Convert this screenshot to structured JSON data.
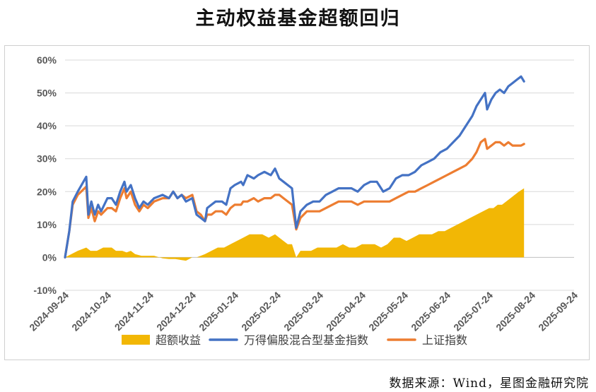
{
  "title": "主动权益基金超额回归",
  "source": "数据来源：Wind，星图金融研究院",
  "chart_data": {
    "type": "area+line",
    "title": "主动权益基金超额回归",
    "y_ticks": [
      "60%",
      "50%",
      "40%",
      "30%",
      "20%",
      "10%",
      "0%",
      "-10%"
    ],
    "ylim": [
      -10,
      60
    ],
    "x_ticks": [
      "2024-09-24",
      "2024-10-24",
      "2024-11-24",
      "2024-12-24",
      "2025-01-24",
      "2025-02-24",
      "2025-03-24",
      "2025-04-24",
      "2025-05-24",
      "2025-06-24",
      "2025-07-24",
      "2025-08-24",
      "2025-09-24"
    ],
    "legend": [
      {
        "name": "超额收益",
        "kind": "area",
        "color": "#F2B705"
      },
      {
        "name": "万得偏股混合型基金指数",
        "kind": "line",
        "color": "#4472C4"
      },
      {
        "name": "上证指数",
        "kind": "line",
        "color": "#ED7D31"
      }
    ],
    "legend_position": "bottom",
    "x_unit": "month_index",
    "series": [
      {
        "name": "万得偏股混合型基金指数",
        "color": "#4472C4",
        "points": [
          [
            0,
            0
          ],
          [
            0.1,
            8
          ],
          [
            0.18,
            17
          ],
          [
            0.3,
            20
          ],
          [
            0.5,
            24.5
          ],
          [
            0.55,
            13
          ],
          [
            0.62,
            17
          ],
          [
            0.7,
            13
          ],
          [
            0.78,
            16
          ],
          [
            0.85,
            14
          ],
          [
            1.0,
            18
          ],
          [
            1.1,
            18
          ],
          [
            1.2,
            16
          ],
          [
            1.3,
            20
          ],
          [
            1.4,
            23
          ],
          [
            1.45,
            20
          ],
          [
            1.55,
            22
          ],
          [
            1.65,
            18
          ],
          [
            1.75,
            15
          ],
          [
            1.85,
            17
          ],
          [
            1.95,
            16
          ],
          [
            2.1,
            18
          ],
          [
            2.3,
            19
          ],
          [
            2.45,
            18
          ],
          [
            2.55,
            20
          ],
          [
            2.65,
            18
          ],
          [
            2.75,
            19
          ],
          [
            2.85,
            17
          ],
          [
            3.0,
            18
          ],
          [
            3.1,
            13
          ],
          [
            3.2,
            12
          ],
          [
            3.3,
            11
          ],
          [
            3.35,
            15
          ],
          [
            3.45,
            16
          ],
          [
            3.55,
            17
          ],
          [
            3.7,
            17
          ],
          [
            3.8,
            16
          ],
          [
            3.9,
            21
          ],
          [
            4.0,
            22
          ],
          [
            4.15,
            23
          ],
          [
            4.2,
            22
          ],
          [
            4.3,
            25
          ],
          [
            4.45,
            24
          ],
          [
            4.55,
            25
          ],
          [
            4.7,
            26
          ],
          [
            4.85,
            25
          ],
          [
            4.95,
            27
          ],
          [
            5.05,
            24
          ],
          [
            5.15,
            23
          ],
          [
            5.25,
            22
          ],
          [
            5.35,
            21
          ],
          [
            5.45,
            9
          ],
          [
            5.55,
            14
          ],
          [
            5.7,
            16
          ],
          [
            5.85,
            17
          ],
          [
            6.0,
            17
          ],
          [
            6.15,
            19
          ],
          [
            6.3,
            20
          ],
          [
            6.45,
            21
          ],
          [
            6.6,
            21
          ],
          [
            6.75,
            21
          ],
          [
            6.9,
            20
          ],
          [
            7.05,
            22
          ],
          [
            7.2,
            23
          ],
          [
            7.35,
            23
          ],
          [
            7.5,
            20
          ],
          [
            7.65,
            21
          ],
          [
            7.8,
            24
          ],
          [
            7.95,
            25
          ],
          [
            8.1,
            25
          ],
          [
            8.25,
            26
          ],
          [
            8.4,
            28
          ],
          [
            8.55,
            29
          ],
          [
            8.7,
            30
          ],
          [
            8.85,
            32
          ],
          [
            9.0,
            33
          ],
          [
            9.15,
            35
          ],
          [
            9.3,
            37
          ],
          [
            9.45,
            40
          ],
          [
            9.6,
            43
          ],
          [
            9.7,
            46
          ],
          [
            9.8,
            48
          ],
          [
            9.9,
            50
          ],
          [
            9.95,
            45
          ],
          [
            10.05,
            48
          ],
          [
            10.15,
            50
          ],
          [
            10.25,
            51
          ],
          [
            10.35,
            50
          ],
          [
            10.45,
            52
          ],
          [
            10.55,
            53
          ],
          [
            10.65,
            54
          ],
          [
            10.75,
            55
          ],
          [
            10.82,
            53.5
          ]
        ]
      },
      {
        "name": "上证指数",
        "color": "#ED7D31",
        "points": [
          [
            0,
            0
          ],
          [
            0.1,
            8
          ],
          [
            0.18,
            16
          ],
          [
            0.3,
            19
          ],
          [
            0.5,
            21.5
          ],
          [
            0.55,
            12
          ],
          [
            0.62,
            15
          ],
          [
            0.7,
            11
          ],
          [
            0.78,
            14
          ],
          [
            0.85,
            13
          ],
          [
            1.0,
            15
          ],
          [
            1.1,
            15
          ],
          [
            1.2,
            14
          ],
          [
            1.3,
            18
          ],
          [
            1.4,
            21
          ],
          [
            1.45,
            18
          ],
          [
            1.55,
            20
          ],
          [
            1.65,
            16
          ],
          [
            1.75,
            14
          ],
          [
            1.85,
            16
          ],
          [
            1.95,
            15
          ],
          [
            2.1,
            17
          ],
          [
            2.3,
            18
          ],
          [
            2.45,
            18
          ],
          [
            2.55,
            20
          ],
          [
            2.65,
            18
          ],
          [
            2.75,
            19
          ],
          [
            2.85,
            18
          ],
          [
            3.0,
            19
          ],
          [
            3.1,
            14
          ],
          [
            3.2,
            13
          ],
          [
            3.3,
            11
          ],
          [
            3.35,
            13
          ],
          [
            3.45,
            13
          ],
          [
            3.55,
            14
          ],
          [
            3.7,
            14
          ],
          [
            3.8,
            13
          ],
          [
            3.9,
            15
          ],
          [
            4.0,
            16
          ],
          [
            4.15,
            16
          ],
          [
            4.2,
            17
          ],
          [
            4.3,
            17
          ],
          [
            4.45,
            18
          ],
          [
            4.55,
            17
          ],
          [
            4.7,
            18
          ],
          [
            4.85,
            18
          ],
          [
            4.95,
            19
          ],
          [
            5.05,
            19
          ],
          [
            5.15,
            18
          ],
          [
            5.25,
            17
          ],
          [
            5.35,
            16
          ],
          [
            5.45,
            8.5
          ],
          [
            5.55,
            12
          ],
          [
            5.7,
            14
          ],
          [
            5.85,
            14
          ],
          [
            6.0,
            14
          ],
          [
            6.15,
            15
          ],
          [
            6.3,
            16
          ],
          [
            6.45,
            17
          ],
          [
            6.6,
            17
          ],
          [
            6.75,
            17
          ],
          [
            6.9,
            16
          ],
          [
            7.05,
            17
          ],
          [
            7.2,
            17
          ],
          [
            7.35,
            17
          ],
          [
            7.5,
            17
          ],
          [
            7.65,
            17
          ],
          [
            7.8,
            18
          ],
          [
            7.95,
            19
          ],
          [
            8.1,
            20
          ],
          [
            8.25,
            20
          ],
          [
            8.4,
            21
          ],
          [
            8.55,
            22
          ],
          [
            8.7,
            23
          ],
          [
            8.85,
            24
          ],
          [
            9.0,
            25
          ],
          [
            9.15,
            26
          ],
          [
            9.3,
            27
          ],
          [
            9.45,
            28
          ],
          [
            9.6,
            30
          ],
          [
            9.7,
            32
          ],
          [
            9.8,
            35
          ],
          [
            9.9,
            36
          ],
          [
            9.95,
            33
          ],
          [
            10.05,
            34
          ],
          [
            10.15,
            35
          ],
          [
            10.25,
            35
          ],
          [
            10.35,
            34
          ],
          [
            10.45,
            35
          ],
          [
            10.55,
            34
          ],
          [
            10.65,
            34
          ],
          [
            10.75,
            34
          ],
          [
            10.82,
            34.5
          ]
        ]
      },
      {
        "name": "超额收益",
        "color": "#F2B705",
        "points": [
          [
            0,
            0
          ],
          [
            0.15,
            1
          ],
          [
            0.3,
            2
          ],
          [
            0.5,
            3
          ],
          [
            0.6,
            2
          ],
          [
            0.75,
            2
          ],
          [
            0.9,
            3
          ],
          [
            1.0,
            3
          ],
          [
            1.1,
            3
          ],
          [
            1.2,
            2
          ],
          [
            1.35,
            2
          ],
          [
            1.45,
            1.5
          ],
          [
            1.55,
            2
          ],
          [
            1.65,
            1
          ],
          [
            1.8,
            0.5
          ],
          [
            1.95,
            0.5
          ],
          [
            2.1,
            0.5
          ],
          [
            2.3,
            -0.3
          ],
          [
            2.45,
            -0.5
          ],
          [
            2.6,
            -0.5
          ],
          [
            2.75,
            -0.8
          ],
          [
            2.85,
            -1
          ],
          [
            3.0,
            0
          ],
          [
            3.1,
            0
          ],
          [
            3.2,
            0.5
          ],
          [
            3.3,
            1
          ],
          [
            3.45,
            2
          ],
          [
            3.6,
            3
          ],
          [
            3.75,
            3
          ],
          [
            3.9,
            4
          ],
          [
            4.05,
            5
          ],
          [
            4.2,
            6
          ],
          [
            4.35,
            7
          ],
          [
            4.5,
            7
          ],
          [
            4.65,
            7
          ],
          [
            4.8,
            6
          ],
          [
            4.95,
            7
          ],
          [
            5.05,
            6
          ],
          [
            5.15,
            5
          ],
          [
            5.25,
            4
          ],
          [
            5.35,
            4
          ],
          [
            5.45,
            0
          ],
          [
            5.55,
            2
          ],
          [
            5.65,
            2
          ],
          [
            5.8,
            2
          ],
          [
            5.95,
            3
          ],
          [
            6.1,
            3
          ],
          [
            6.25,
            3
          ],
          [
            6.4,
            3
          ],
          [
            6.55,
            4
          ],
          [
            6.7,
            3
          ],
          [
            6.85,
            3
          ],
          [
            7.0,
            4
          ],
          [
            7.15,
            4
          ],
          [
            7.3,
            4
          ],
          [
            7.45,
            3
          ],
          [
            7.6,
            4
          ],
          [
            7.75,
            6
          ],
          [
            7.9,
            6
          ],
          [
            8.05,
            5
          ],
          [
            8.2,
            6
          ],
          [
            8.35,
            7
          ],
          [
            8.5,
            7
          ],
          [
            8.65,
            7
          ],
          [
            8.8,
            8
          ],
          [
            8.95,
            8
          ],
          [
            9.1,
            9
          ],
          [
            9.25,
            10
          ],
          [
            9.4,
            11
          ],
          [
            9.55,
            12
          ],
          [
            9.7,
            13
          ],
          [
            9.85,
            14
          ],
          [
            10.0,
            15
          ],
          [
            10.1,
            15
          ],
          [
            10.2,
            16
          ],
          [
            10.3,
            16
          ],
          [
            10.4,
            17
          ],
          [
            10.5,
            18
          ],
          [
            10.6,
            19
          ],
          [
            10.7,
            20
          ],
          [
            10.82,
            21
          ]
        ]
      }
    ]
  }
}
